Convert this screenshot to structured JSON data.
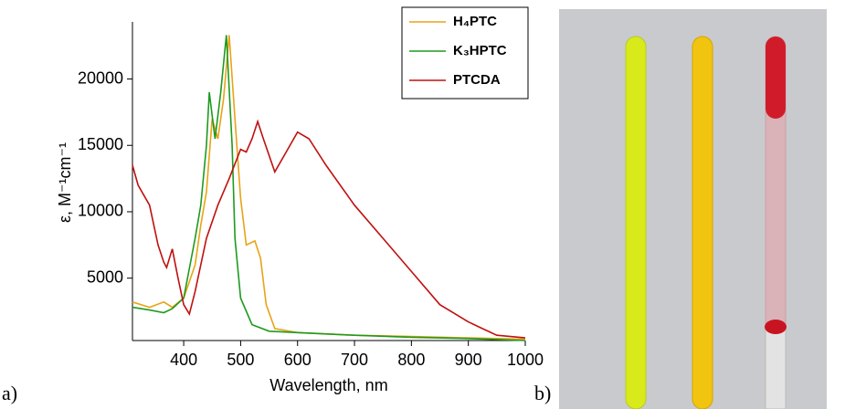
{
  "chart_data": {
    "type": "line",
    "xlabel": "Wavelength, nm",
    "ylabel": "ε, M⁻¹cm⁻¹",
    "xlim": [
      310,
      1000
    ],
    "ylim": [
      300,
      24300
    ],
    "xticks": [
      400,
      500,
      600,
      700,
      800,
      900,
      1000
    ],
    "yticks": [
      5000,
      10000,
      15000,
      20000
    ],
    "legend": "upper right",
    "series": [
      {
        "name": "H₄PTC",
        "color": "#e8a317",
        "x": [
          310,
          340,
          365,
          380,
          400,
          420,
          430,
          440,
          450,
          460,
          470,
          480,
          490,
          500,
          510,
          525,
          535,
          545,
          560,
          600,
          700,
          800,
          900,
          1000
        ],
        "values": [
          3200,
          2800,
          3200,
          2800,
          3500,
          6000,
          9000,
          11500,
          17000,
          15500,
          18500,
          23300,
          17000,
          11000,
          7500,
          7800,
          6500,
          3000,
          1200,
          900,
          700,
          600,
          500,
          400
        ]
      },
      {
        "name": "K₃HPTC",
        "color": "#1e9a1e",
        "x": [
          310,
          340,
          365,
          380,
          400,
          420,
          430,
          440,
          445,
          455,
          465,
          475,
          485,
          490,
          500,
          520,
          550,
          600,
          700,
          800,
          900,
          1000
        ],
        "values": [
          2800,
          2600,
          2400,
          2700,
          3500,
          8000,
          10500,
          15000,
          19000,
          15500,
          19000,
          23300,
          15000,
          8000,
          3500,
          1500,
          1000,
          900,
          700,
          550,
          450,
          300
        ]
      },
      {
        "name": "PTCDA",
        "color": "#c01010",
        "x": [
          310,
          320,
          340,
          355,
          365,
          370,
          380,
          390,
          400,
          410,
          420,
          440,
          460,
          480,
          500,
          510,
          520,
          530,
          540,
          560,
          580,
          600,
          620,
          650,
          700,
          750,
          800,
          850,
          900,
          920,
          950,
          1000
        ],
        "values": [
          13500,
          12000,
          10500,
          7500,
          6200,
          5800,
          7200,
          5000,
          3000,
          2300,
          4000,
          8000,
          10500,
          12500,
          14700,
          14500,
          15500,
          16800,
          15500,
          13000,
          14500,
          16000,
          15500,
          13500,
          10500,
          8000,
          5500,
          3000,
          1700,
          1300,
          700,
          500
        ]
      }
    ]
  },
  "panel_labels": [
    "a)",
    "b)"
  ]
}
